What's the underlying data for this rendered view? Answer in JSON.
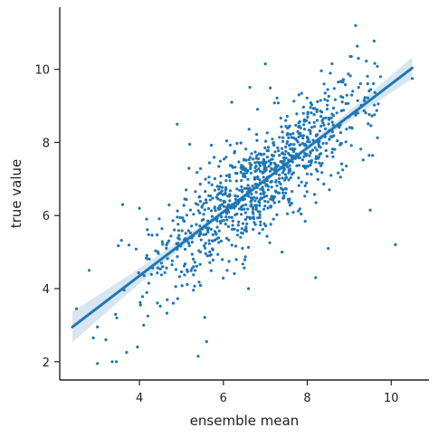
{
  "chart_data": {
    "type": "scatter",
    "title": "",
    "xlabel": "ensemble mean",
    "ylabel": "true value",
    "xlim": [
      2.1,
      10.9
    ],
    "ylim": [
      1.5,
      11.7
    ],
    "xticks": [
      4,
      6,
      8,
      10
    ],
    "yticks": [
      2,
      4,
      6,
      8,
      10
    ],
    "grid": false,
    "legend": "none",
    "colors": {
      "points": "#1f77b4",
      "fit": "#1f77b4",
      "band": "#1f77b4",
      "axes": "#222222"
    },
    "regression": {
      "slope": 0.875,
      "intercept": 0.85,
      "x_range": [
        2.4,
        10.5
      ]
    },
    "point_count": 1000,
    "notable_points": [
      [
        2.5,
        3.45
      ],
      [
        2.8,
        4.5
      ],
      [
        2.9,
        2.65
      ],
      [
        3.0,
        2.95
      ],
      [
        3.0,
        1.95
      ],
      [
        3.2,
        2.6
      ],
      [
        3.35,
        2.0
      ],
      [
        3.45,
        2.0
      ],
      [
        3.6,
        6.3
      ],
      [
        4.0,
        6.2
      ],
      [
        4.1,
        3.0
      ],
      [
        4.2,
        3.25
      ],
      [
        4.9,
        8.5
      ],
      [
        5.2,
        7.95
      ],
      [
        5.4,
        2.15
      ],
      [
        5.6,
        2.55
      ],
      [
        6.2,
        9.1
      ],
      [
        7.0,
        10.15
      ],
      [
        7.8,
        9.3
      ],
      [
        8.0,
        8.15
      ],
      [
        8.2,
        4.3
      ],
      [
        8.5,
        5.1
      ],
      [
        9.05,
        10.35
      ],
      [
        9.15,
        11.2
      ],
      [
        9.5,
        6.15
      ],
      [
        10.1,
        5.2
      ],
      [
        10.5,
        9.75
      ],
      [
        8.4,
        9.6
      ],
      [
        7.4,
        5.0
      ],
      [
        6.6,
        4.0
      ]
    ]
  }
}
